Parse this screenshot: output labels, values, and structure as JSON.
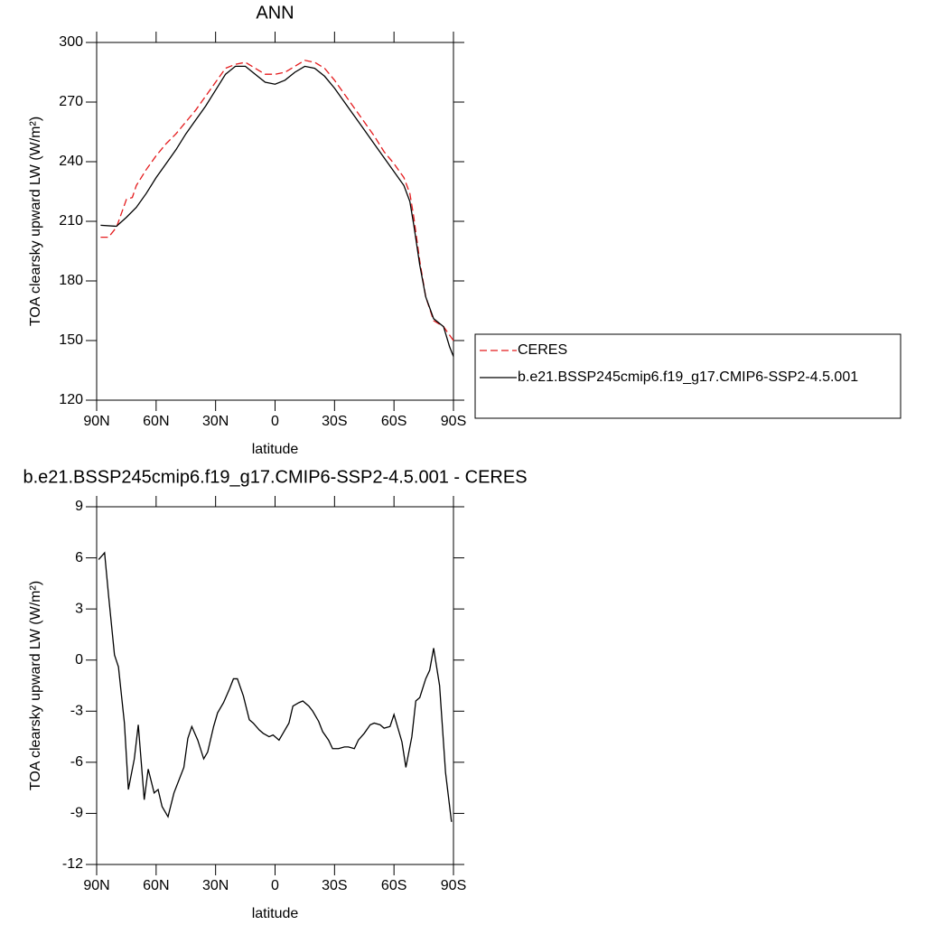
{
  "chart_data": [
    {
      "type": "line",
      "title": "ANN",
      "xlabel": "latitude",
      "ylabel": "TOA clearsky upward LW (W/m²)",
      "xlim": [
        90,
        -90
      ],
      "ylim": [
        120,
        300
      ],
      "xticks": [
        {
          "value": 90,
          "label": "90N"
        },
        {
          "value": 60,
          "label": "60N"
        },
        {
          "value": 30,
          "label": "30N"
        },
        0,
        {
          "value": -30,
          "label": "30S"
        },
        {
          "value": -60,
          "label": "60S"
        },
        {
          "value": -90,
          "label": "90S"
        }
      ],
      "yticks": [
        120,
        150,
        180,
        210,
        240,
        270,
        300
      ],
      "legend": "right",
      "series": [
        {
          "name": "CERES",
          "color": "#e41a1c",
          "linestyle": "dashed",
          "x": [
            88,
            84,
            80,
            75,
            72,
            70,
            65,
            60,
            55,
            50,
            45,
            40,
            35,
            30,
            25,
            20,
            15,
            10,
            5,
            0,
            -5,
            -10,
            -15,
            -20,
            -25,
            -30,
            -35,
            -40,
            -45,
            -50,
            -55,
            -60,
            -65,
            -68,
            -70,
            -73,
            -76,
            -80,
            -85,
            -90
          ],
          "values": [
            202,
            202,
            207,
            221,
            222,
            228,
            236,
            243,
            249,
            254,
            260,
            266,
            273,
            280,
            287,
            289,
            290,
            287,
            284,
            284,
            285,
            288,
            291,
            290,
            287,
            281,
            274,
            267,
            260,
            253,
            245,
            239,
            232,
            224,
            212,
            190,
            172,
            160,
            157,
            150
          ]
        },
        {
          "name": "b.e21.BSSP245cmip6.f19_g17.CMIP6-SSP2-4.5.001",
          "color": "#000000",
          "linestyle": "solid",
          "x": [
            88,
            80,
            75,
            70,
            65,
            60,
            55,
            50,
            45,
            40,
            35,
            30,
            25,
            20,
            15,
            10,
            5,
            0,
            -5,
            -10,
            -15,
            -20,
            -25,
            -30,
            -35,
            -40,
            -45,
            -50,
            -55,
            -60,
            -65,
            -68,
            -70,
            -73,
            -76,
            -80,
            -85,
            -88,
            -90
          ],
          "values": [
            208,
            207.5,
            212,
            217,
            224,
            232,
            239,
            246,
            254,
            261,
            268,
            276,
            284,
            288,
            288,
            284,
            280,
            279,
            281,
            285,
            288,
            287,
            283,
            277,
            270,
            263,
            256,
            249,
            242,
            235,
            228,
            220,
            208,
            188,
            172,
            161,
            157,
            147,
            142
          ]
        }
      ]
    },
    {
      "type": "line",
      "title": "b.e21.BSSP245cmip6.f19_g17.CMIP6-SSP2-4.5.001 - CERES",
      "xlabel": "latitude",
      "ylabel": "TOA clearsky upward LW (W/m²)",
      "xlim": [
        90,
        -90
      ],
      "ylim": [
        -12,
        9
      ],
      "xticks": [
        {
          "value": 90,
          "label": "90N"
        },
        {
          "value": 60,
          "label": "60N"
        },
        {
          "value": 30,
          "label": "30N"
        },
        0,
        {
          "value": -30,
          "label": "30S"
        },
        {
          "value": -60,
          "label": "60S"
        },
        {
          "value": -90,
          "label": "90S"
        }
      ],
      "yticks": [
        -12,
        -9,
        -6,
        -3,
        0,
        3,
        6,
        9
      ],
      "series": [
        {
          "color": "#000000",
          "linestyle": "solid",
          "x": [
            89,
            86,
            84,
            81,
            79,
            76,
            74,
            71,
            69,
            66,
            64,
            61,
            59,
            57,
            54,
            51,
            46,
            44,
            42,
            39,
            36,
            34,
            31,
            29,
            26,
            23,
            21,
            19,
            16,
            13,
            11,
            8,
            6,
            3,
            1,
            -2,
            -4,
            -7,
            -9,
            -12,
            -14,
            -17,
            -19,
            -22,
            -24,
            -27,
            -29,
            -32,
            -35,
            -37,
            -40,
            -42,
            -45,
            -48,
            -50,
            -53,
            -55,
            -58,
            -60,
            -64,
            -66,
            -69,
            -71,
            -73,
            -76,
            -78,
            -80,
            -83,
            -86,
            -89
          ],
          "values": [
            5.9,
            6.3,
            3.8,
            0.3,
            -0.4,
            -3.7,
            -7.6,
            -5.8,
            -3.8,
            -8.2,
            -6.4,
            -7.8,
            -7.6,
            -8.6,
            -9.2,
            -7.8,
            -6.3,
            -4.6,
            -3.9,
            -4.7,
            -5.8,
            -5.4,
            -3.9,
            -3.1,
            -2.5,
            -1.7,
            -1.1,
            -1.1,
            -2.1,
            -3.5,
            -3.7,
            -4.1,
            -4.3,
            -4.5,
            -4.4,
            -4.7,
            -4.3,
            -3.7,
            -2.7,
            -2.5,
            -2.4,
            -2.7,
            -3.0,
            -3.6,
            -4.2,
            -4.7,
            -5.2,
            -5.2,
            -5.1,
            -5.1,
            -5.2,
            -4.7,
            -4.3,
            -3.8,
            -3.7,
            -3.8,
            -4.0,
            -3.9,
            -3.2,
            -4.8,
            -6.3,
            -4.5,
            -2.4,
            -2.2,
            -1.1,
            -0.6,
            0.7,
            -1.5,
            -6.6,
            -9.5
          ]
        }
      ]
    }
  ]
}
